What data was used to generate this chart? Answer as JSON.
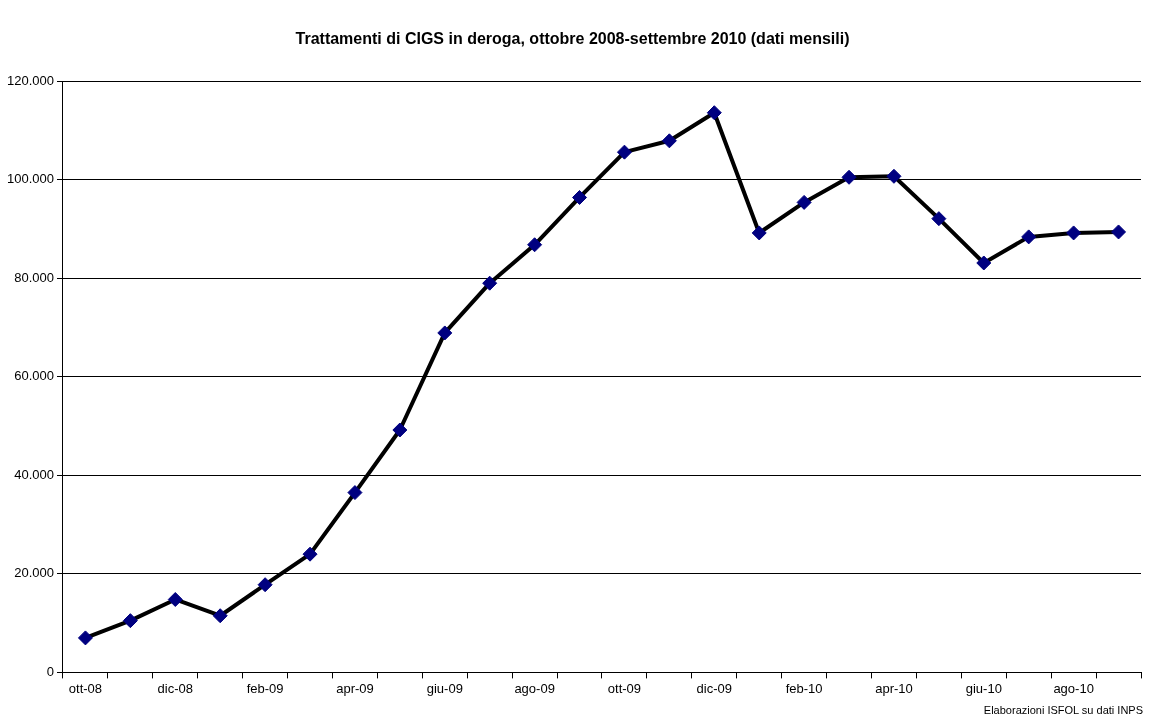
{
  "chart_data": {
    "type": "line",
    "title": "Trattamenti di CIGS in deroga, ottobre 2008-settembre 2010 (dati mensili)",
    "categories": [
      "ott-08",
      null,
      "dic-08",
      null,
      "feb-09",
      null,
      "apr-09",
      null,
      "giu-09",
      null,
      "ago-09",
      null,
      "ott-09",
      null,
      "dic-09",
      null,
      "feb-10",
      null,
      "apr-10",
      null,
      "giu-10",
      null,
      "ago-10",
      null
    ],
    "series": [
      {
        "color": "#000000",
        "values": [
          7000,
          10500,
          14800,
          11500,
          17800,
          24000,
          36500,
          49200,
          68900,
          79000,
          86800,
          96400,
          105600,
          107900,
          113600,
          89200,
          95400,
          100500,
          100700,
          92100,
          83100,
          88400,
          89200,
          89400
        ]
      }
    ],
    "ylim": [
      0,
      120000
    ],
    "yticks": [
      0,
      {
        "value": 20000,
        "label": "20.000"
      },
      {
        "value": 40000,
        "label": "40.000"
      },
      {
        "value": 60000,
        "label": "60.000"
      },
      {
        "value": 80000,
        "label": "80.000"
      },
      {
        "value": 100000,
        "label": "100.000"
      },
      {
        "value": 120000,
        "label": "120.000"
      }
    ],
    "grid": "y",
    "legend": false,
    "marker": "diamond",
    "line_style": "solid",
    "annotations": [
      "Elaborazioni ISFOL su dati INPS"
    ]
  }
}
